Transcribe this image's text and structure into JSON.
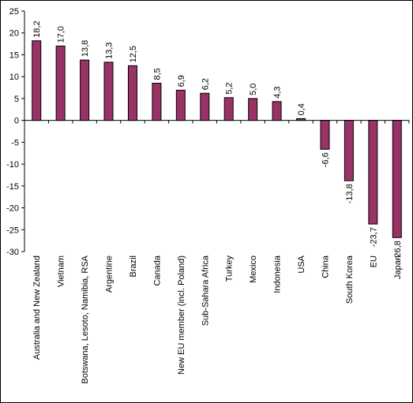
{
  "chart_data": {
    "type": "bar",
    "title": "",
    "xlabel": "",
    "ylabel": "",
    "ylim": [
      -30,
      25
    ],
    "yticks": [
      25,
      20,
      15,
      10,
      5,
      0,
      -5,
      -10,
      -15,
      -20,
      -25,
      -30
    ],
    "grid": false,
    "legend": "none",
    "categories": [
      "Australia and New Zealand",
      "Vietnam",
      "Botswana, Lesoto, Namibia, RSA",
      "Argentine",
      "Brazil",
      "Canada",
      "New EU member (incl. Poland)",
      "Sub-Sahara Africa",
      "Turkey",
      "Mexico",
      "Indonesia",
      "USA",
      "China",
      "South Korea",
      "EU",
      "Japan"
    ],
    "values": [
      18.2,
      17.0,
      13.8,
      13.3,
      12.5,
      8.5,
      6.9,
      6.2,
      5.2,
      5.0,
      4.3,
      0.4,
      -6.6,
      -13.8,
      -23.7,
      -26.8
    ],
    "data_labels": [
      "18,2",
      "17,0",
      "13,8",
      "13,3",
      "12,5",
      "8,5",
      "6,9",
      "6,2",
      "5,2",
      "5,0",
      "4,3",
      "0,4",
      "-6,6",
      "-13,8",
      "-23,7",
      "-26,8"
    ],
    "tick_labels": [
      "25",
      "20",
      "15",
      "10",
      "5",
      "0",
      "-5",
      "-10",
      "-15",
      "-20",
      "-25",
      "-30"
    ],
    "colors": {
      "bar_fill": "#993366",
      "bar_stroke": "#000000",
      "axis": "#000000",
      "background": "#ffffff"
    }
  }
}
